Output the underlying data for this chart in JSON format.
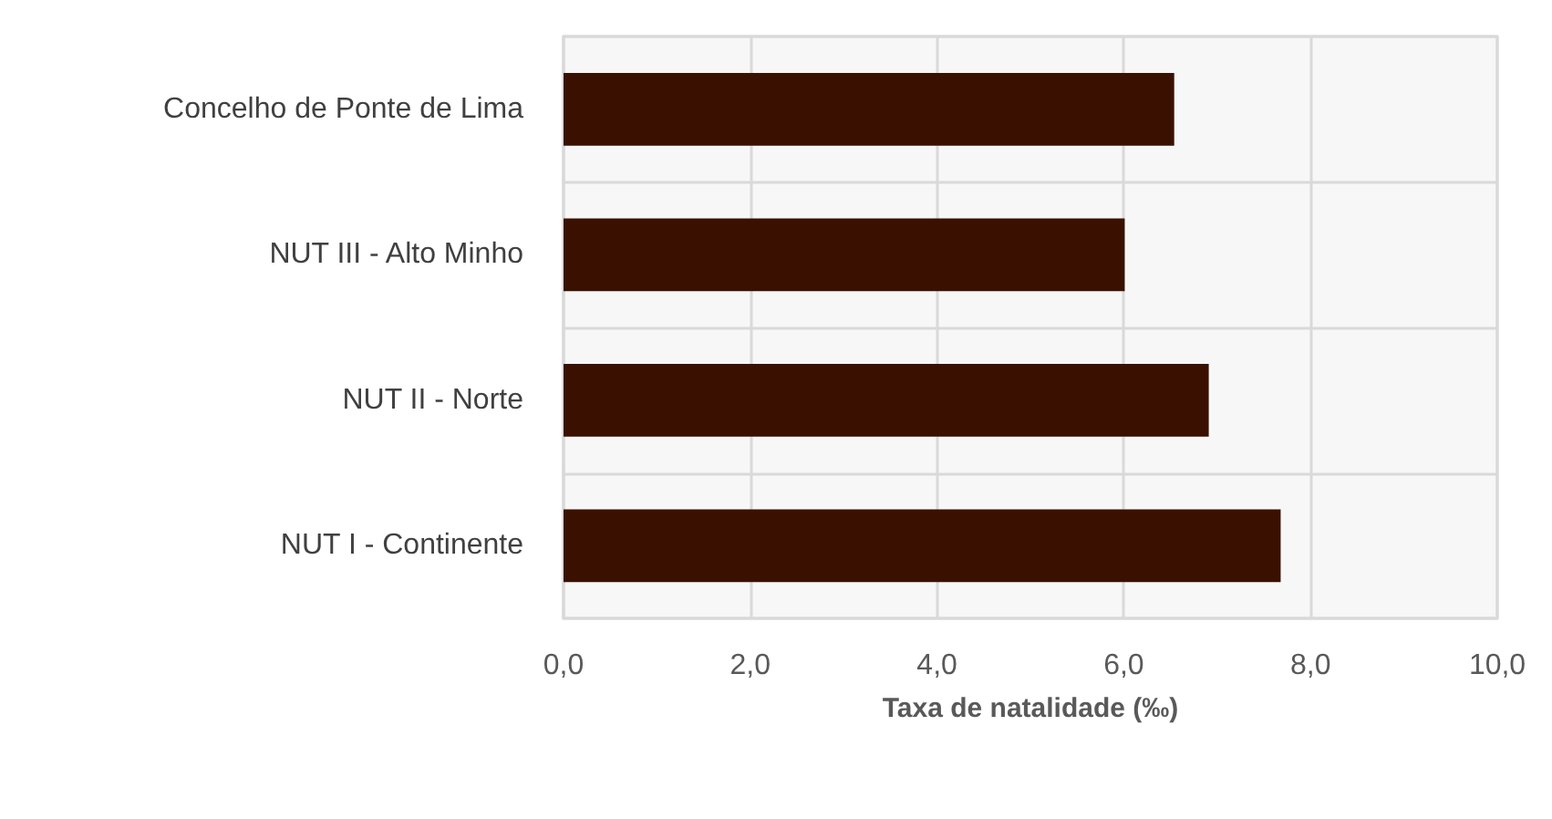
{
  "chart_data": {
    "type": "bar",
    "orientation": "horizontal",
    "xlabel": "Taxa de natalidade (‰)",
    "categories": [
      "Concelho de Ponte de Lima",
      "NUT III - Alto Minho",
      "NUT II - Norte",
      "NUT I - Continente"
    ],
    "values": [
      6.54,
      6.01,
      6.91,
      7.68
    ],
    "color": "#3a1100",
    "xlim": [
      0,
      10
    ],
    "xticks": [
      {
        "value": 0,
        "label": "0,0"
      },
      {
        "value": 2,
        "label": "2,0"
      },
      {
        "value": 4,
        "label": "4,0"
      },
      {
        "value": 6,
        "label": "6,0"
      },
      {
        "value": 8,
        "label": "8,0"
      },
      {
        "value": 10,
        "label": "10,0"
      }
    ],
    "grid": true
  }
}
